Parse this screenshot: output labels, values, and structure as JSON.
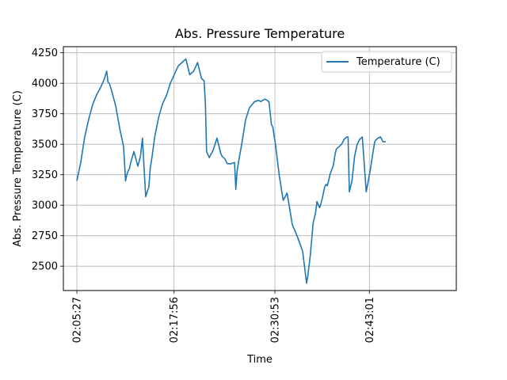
{
  "chart_data": {
    "type": "line",
    "title": "Abs. Pressure Temperature",
    "xlabel": "Time",
    "ylabel": "Abs. Pressure Temperature (C)",
    "ylim": [
      2300,
      4300
    ],
    "xlim_seconds": [
      -104,
      2924
    ],
    "yticks": [
      2500,
      2750,
      3000,
      3250,
      3500,
      3750,
      4000,
      4250
    ],
    "xticks": [
      {
        "label": "02:05:27",
        "t": 0
      },
      {
        "label": "02:17:56",
        "t": 749
      },
      {
        "label": "02:30:53",
        "t": 1526
      },
      {
        "label": "02:43:01",
        "t": 2254
      }
    ],
    "grid": true,
    "legend_position": "top-right",
    "colors": {
      "series": "#1f77b4"
    },
    "series": [
      {
        "name": "Temperature (C)",
        "x_start": "02:05:27",
        "x": [
          0,
          30,
          60,
          90,
          120,
          150,
          180,
          210,
          230,
          240,
          250,
          270,
          300,
          330,
          360,
          375,
          385,
          395,
          405,
          415,
          440,
          470,
          490,
          505,
          530,
          555,
          565,
          580,
          600,
          630,
          660,
          690,
          720,
          750,
          780,
          810,
          840,
          870,
          900,
          930,
          960,
          980,
          990,
          1000,
          1020,
          1050,
          1080,
          1110,
          1120,
          1130,
          1140,
          1160,
          1190,
          1215,
          1225,
          1235,
          1250,
          1270,
          1300,
          1330,
          1370,
          1400,
          1420,
          1430,
          1450,
          1480,
          1500,
          1510,
          1530,
          1560,
          1590,
          1620,
          1660,
          1700,
          1740,
          1770,
          1780,
          1800,
          1820,
          1840,
          1850,
          1870,
          1880,
          1890,
          1900,
          1910,
          1920,
          1930,
          1940,
          1950,
          1960,
          1975,
          1980,
          1990,
          2000,
          2020,
          2040,
          2060,
          2080,
          2090,
          2100,
          2120,
          2140,
          2160,
          2180,
          2200,
          2230,
          2260,
          2280,
          2295,
          2300,
          2310,
          2320,
          2340,
          2360,
          2380
        ],
        "values": [
          3200,
          3350,
          3560,
          3700,
          3820,
          3900,
          3960,
          4030,
          4100,
          4010,
          4000,
          3930,
          3810,
          3630,
          3480,
          3200,
          3250,
          3280,
          3300,
          3350,
          3440,
          3320,
          3400,
          3550,
          3070,
          3150,
          3300,
          3400,
          3560,
          3720,
          3830,
          3900,
          4000,
          4070,
          4140,
          4170,
          4200,
          4070,
          4100,
          4170,
          4040,
          4020,
          3850,
          3440,
          3390,
          3450,
          3550,
          3420,
          3400,
          3390,
          3380,
          3340,
          3340,
          3350,
          3130,
          3280,
          3380,
          3500,
          3700,
          3800,
          3850,
          3860,
          3850,
          3860,
          3870,
          3850,
          3660,
          3640,
          3500,
          3240,
          3040,
          3100,
          2840,
          2740,
          2620,
          2360,
          2420,
          2600,
          2850,
          2940,
          3030,
          2980,
          3010,
          3050,
          3100,
          3150,
          3170,
          3160,
          3200,
          3250,
          3280,
          3320,
          3350,
          3420,
          3460,
          3480,
          3500,
          3540,
          3560,
          3560,
          3110,
          3200,
          3400,
          3500,
          3540,
          3560,
          3110,
          3280,
          3420,
          3520,
          3530,
          3540,
          3550,
          3560,
          3520,
          3520
        ]
      }
    ]
  }
}
